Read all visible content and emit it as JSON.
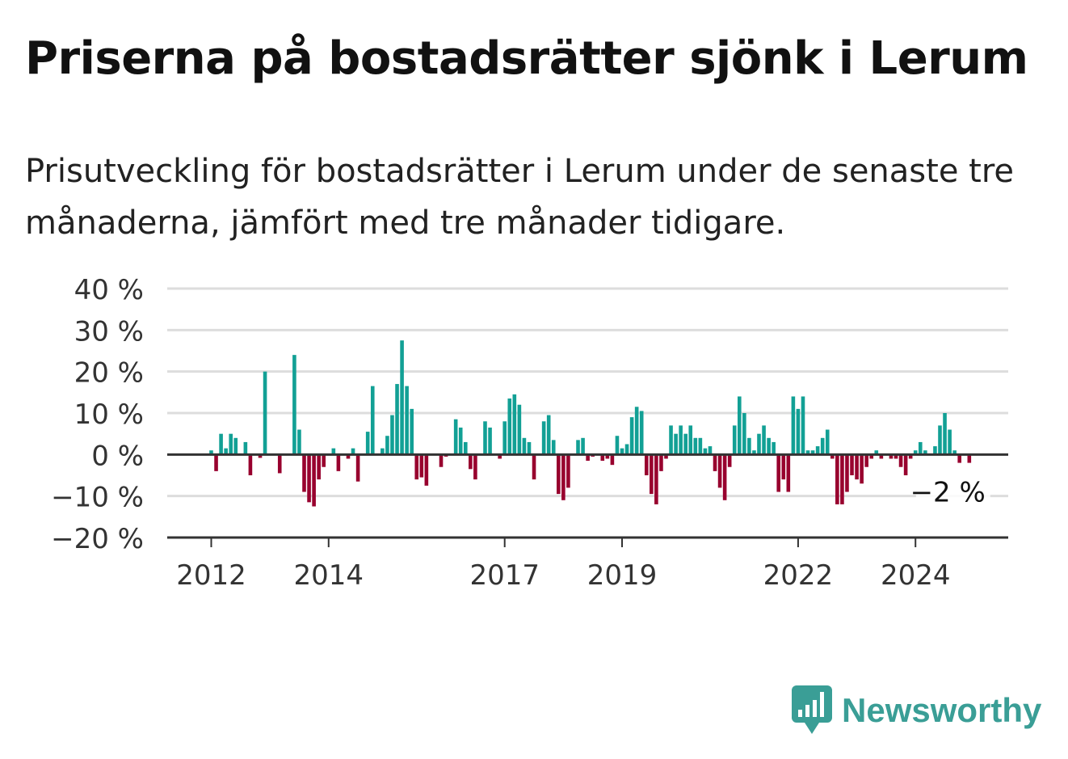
{
  "title": "Priserna på bostadsrätter sjönk i Lerum",
  "subtitle": "Prisutveckling för bostadsrätter i Lerum under de senaste tre månaderna, jämfört med tre månader tidigare.",
  "logo_text": "Newsworthy",
  "colors": {
    "positive": "#12a095",
    "negative": "#98002e",
    "grid": "#dddddd",
    "axis": "#333333"
  },
  "chart_data": {
    "type": "bar",
    "ylim": [
      -20,
      40
    ],
    "yticks": [
      -20,
      -10,
      0,
      10,
      20,
      30,
      40
    ],
    "ytick_labels": [
      "−20 %",
      "−10 %",
      "0 %",
      "10 %",
      "20 %",
      "30 %",
      "40 %"
    ],
    "xticks": [
      {
        "x": 2012.0,
        "label": "2012"
      },
      {
        "x": 2014.0,
        "label": "2014"
      },
      {
        "x": 2017.0,
        "label": "2017"
      },
      {
        "x": 2019.0,
        "label": "2019"
      },
      {
        "x": 2022.0,
        "label": "2022"
      },
      {
        "x": 2024.0,
        "label": "2024"
      }
    ],
    "x_start": 2011.25,
    "x_end": 2025.58,
    "period_start": "2012-01",
    "period_end": "2025-04",
    "values": [
      1,
      -4,
      5,
      1.5,
      5,
      4,
      0,
      3,
      -5,
      0,
      -0.8,
      20,
      0,
      0,
      -4.5,
      0,
      0,
      24,
      6,
      -9,
      -11.5,
      -12.5,
      -6,
      -3,
      0,
      1.5,
      -4,
      0,
      -1,
      1.5,
      -6.5,
      0,
      5.5,
      16.5,
      0,
      1.5,
      4.5,
      9.5,
      17,
      27.5,
      16.5,
      11,
      -6,
      -5.5,
      -7.5,
      0,
      0,
      -3,
      -0.5,
      0,
      8.5,
      6.5,
      3,
      -3.5,
      -6,
      0,
      8,
      6.5,
      0,
      -1,
      8,
      13.5,
      14.5,
      12,
      4,
      3,
      -6,
      0,
      8,
      9.5,
      3.5,
      -9.5,
      -11,
      -8,
      0,
      3.5,
      4,
      -1.5,
      -0.5,
      0,
      -1.5,
      -1,
      -2.5,
      4.5,
      1.5,
      2.5,
      9,
      11.5,
      10.5,
      -5,
      -9.5,
      -12,
      -4,
      -1,
      7,
      5,
      7,
      5,
      7,
      4,
      4,
      1.5,
      2,
      -4,
      -8,
      -11,
      -3,
      7,
      14,
      10,
      4,
      1,
      5,
      7,
      4,
      3,
      -9,
      -6,
      -9,
      14,
      11,
      14,
      1,
      1,
      2,
      4,
      6,
      -1,
      -12,
      -12,
      -9,
      -5,
      -6,
      -7,
      -3,
      -1,
      1,
      -1,
      0,
      -1,
      -1,
      -3,
      -5,
      -1,
      1,
      3,
      1,
      0,
      2,
      7,
      10,
      6,
      1,
      -2,
      0,
      -2
    ],
    "annotation": {
      "text": "−2 %"
    }
  }
}
